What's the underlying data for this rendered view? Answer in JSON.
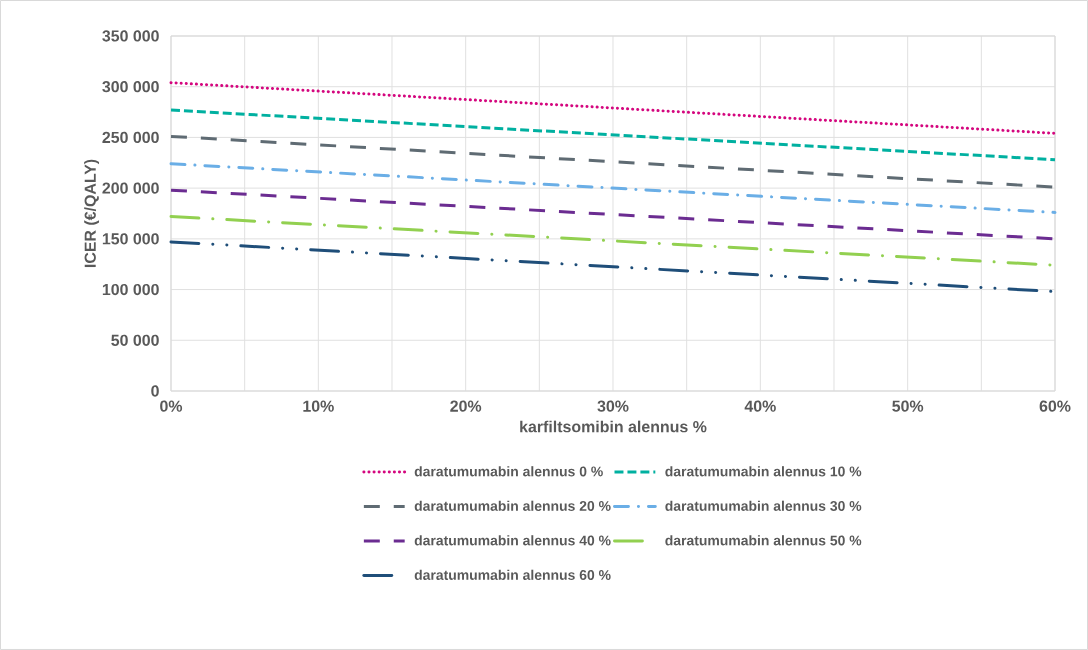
{
  "chart_data": {
    "type": "line",
    "xlabel": "karfiltsomibin alennus %",
    "ylabel": "ICER (€/QALY)",
    "x": [
      0,
      60
    ],
    "series": [
      {
        "name": "daratumumabin alennus 0 %",
        "color": "#d4067e",
        "line_style": "dotted",
        "values": [
          304000,
          254000
        ]
      },
      {
        "name": "daratumumabin alennus 10 %",
        "color": "#00b0a0",
        "line_style": "dashed",
        "values": [
          277000,
          228000
        ]
      },
      {
        "name": "daratumumabin alennus 20 %",
        "color": "#5f6b73",
        "line_style": "longdashed",
        "values": [
          251000,
          201000
        ]
      },
      {
        "name": "daratumumabin alennus 30 %",
        "color": "#6aaee6",
        "line_style": "dashdot",
        "values": [
          224000,
          176000
        ]
      },
      {
        "name": "daratumumabin alennus 40 %",
        "color": "#6b2c91",
        "line_style": "longdashed",
        "values": [
          198000,
          150000
        ]
      },
      {
        "name": "daratumumabin alennus 50 %",
        "color": "#92d050",
        "line_style": "longdashdot",
        "values": [
          172000,
          124000
        ]
      },
      {
        "name": "daratumumabin alennus 60 %",
        "color": "#1f4e79",
        "line_style": "longdashdotdot",
        "values": [
          147000,
          98000
        ]
      }
    ],
    "xlim": [
      0,
      60
    ],
    "xticks": [
      {
        "value": 0,
        "label": "0%"
      },
      {
        "value": 5,
        "label": null
      },
      {
        "value": 10,
        "label": "10%"
      },
      {
        "value": 15,
        "label": null
      },
      {
        "value": 20,
        "label": "20%"
      },
      {
        "value": 25,
        "label": null
      },
      {
        "value": 30,
        "label": "30%"
      },
      {
        "value": 35,
        "label": null
      },
      {
        "value": 40,
        "label": "40%"
      },
      {
        "value": 45,
        "label": null
      },
      {
        "value": 50,
        "label": "50%"
      },
      {
        "value": 55,
        "label": null
      },
      {
        "value": 60,
        "label": "60%"
      }
    ],
    "ylim": [
      0,
      350000
    ],
    "yticks": [
      0,
      {
        "value": 50000,
        "label": "50 000"
      },
      {
        "value": 100000,
        "label": "100 000"
      },
      {
        "value": 150000,
        "label": "150 000"
      },
      {
        "value": 200000,
        "label": "200 000"
      },
      {
        "value": 250000,
        "label": "250 000"
      },
      {
        "value": 300000,
        "label": "300 000"
      },
      {
        "value": 350000,
        "label": "350 000"
      }
    ],
    "grid": true,
    "legend": "bottom"
  }
}
